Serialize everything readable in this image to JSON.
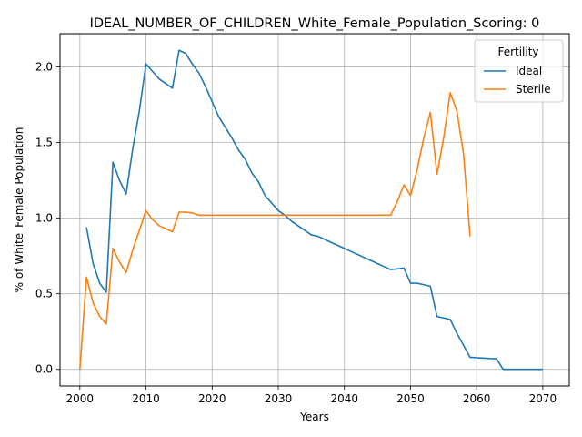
{
  "chart_data": {
    "type": "line",
    "title": "IDEAL_NUMBER_OF_CHILDREN_White_Female_Population_Scoring: 0",
    "xlabel": "Years",
    "ylabel": "% of White_Female Population",
    "xlim": [
      1997,
      2074
    ],
    "ylim": [
      -0.11,
      2.22
    ],
    "xticks": [
      2000,
      2010,
      2020,
      2030,
      2040,
      2050,
      2060,
      2070
    ],
    "yticks": [
      0.0,
      0.5,
      1.0,
      1.5,
      2.0
    ],
    "ytick_labels": [
      "0.0",
      "0.5",
      "1.0",
      "1.5",
      "2.0"
    ],
    "grid": true,
    "legend": {
      "title": "Fertility",
      "placement": "top-right"
    },
    "series": [
      {
        "name": "Ideal",
        "color": "#1f77b4",
        "x": [
          2001,
          2002,
          2003,
          2004,
          2005,
          2006,
          2007,
          2008,
          2009,
          2010,
          2011,
          2012,
          2013,
          2014,
          2015,
          2016,
          2017,
          2018,
          2019,
          2020,
          2021,
          2022,
          2023,
          2024,
          2025,
          2026,
          2027,
          2028,
          2029,
          2030,
          2031,
          2032,
          2033,
          2034,
          2035,
          2036,
          2037,
          2038,
          2039,
          2040,
          2041,
          2042,
          2043,
          2044,
          2045,
          2046,
          2047,
          2048,
          2049,
          2050,
          2051,
          2052,
          2053,
          2054,
          2055,
          2056,
          2057,
          2058,
          2059,
          2060,
          2061,
          2062,
          2063,
          2064,
          2065,
          2066,
          2067,
          2068,
          2069,
          2070
        ],
        "values": [
          0.94,
          0.7,
          0.57,
          0.51,
          1.37,
          1.25,
          1.16,
          1.46,
          1.71,
          2.02,
          1.97,
          1.92,
          1.89,
          1.86,
          2.11,
          2.09,
          2.02,
          1.96,
          1.87,
          1.77,
          1.67,
          1.6,
          1.53,
          1.45,
          1.39,
          1.3,
          1.24,
          1.15,
          1.1,
          1.05,
          1.02,
          0.98,
          0.95,
          0.92,
          0.89,
          0.88,
          0.86,
          0.84,
          0.82,
          0.8,
          0.78,
          0.76,
          0.74,
          0.72,
          0.7,
          0.68,
          0.66,
          0.665,
          0.67,
          0.57,
          0.57,
          0.56,
          0.55,
          0.35,
          0.34,
          0.33,
          0.24,
          0.16,
          0.08,
          0.077,
          0.075,
          0.072,
          0.07,
          0.0,
          0.0,
          0.0,
          0.0,
          0.0,
          0.0,
          0.0
        ]
      },
      {
        "name": "Sterile",
        "color": "#ff7f0e",
        "x": [
          2000,
          2001,
          2002,
          2003,
          2004,
          2005,
          2006,
          2007,
          2008,
          2009,
          2010,
          2011,
          2012,
          2013,
          2014,
          2015,
          2016,
          2017,
          2018,
          2019,
          2020,
          2021,
          2022,
          2023,
          2024,
          2025,
          2026,
          2027,
          2028,
          2029,
          2030,
          2031,
          2032,
          2033,
          2034,
          2035,
          2036,
          2037,
          2038,
          2039,
          2040,
          2041,
          2042,
          2043,
          2044,
          2045,
          2046,
          2047,
          2048,
          2049,
          2050,
          2051,
          2052,
          2053,
          2054,
          2055,
          2056,
          2057,
          2058,
          2059
        ],
        "values": [
          0.0,
          0.61,
          0.44,
          0.35,
          0.3,
          0.8,
          0.71,
          0.64,
          0.79,
          0.92,
          1.05,
          0.99,
          0.95,
          0.93,
          0.91,
          1.04,
          1.04,
          1.035,
          1.02,
          1.02,
          1.02,
          1.02,
          1.02,
          1.02,
          1.02,
          1.02,
          1.02,
          1.02,
          1.02,
          1.02,
          1.02,
          1.02,
          1.02,
          1.02,
          1.02,
          1.02,
          1.02,
          1.02,
          1.02,
          1.02,
          1.02,
          1.02,
          1.02,
          1.02,
          1.02,
          1.02,
          1.02,
          1.02,
          1.11,
          1.22,
          1.15,
          1.32,
          1.53,
          1.7,
          1.29,
          1.53,
          1.83,
          1.71,
          1.43,
          0.88
        ]
      }
    ]
  }
}
